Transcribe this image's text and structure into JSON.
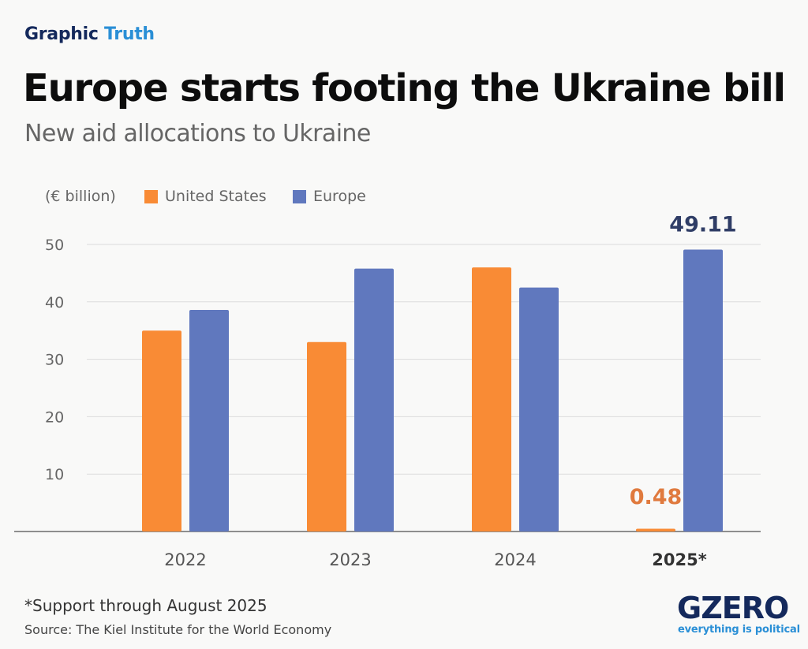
{
  "header": {
    "brand_word1": "Graphic",
    "brand_word2": "Truth"
  },
  "title": "Europe starts footing the Ukraine bill",
  "subtitle": "New aid allocations to Ukraine",
  "footnote": "*Support through August 2025",
  "source": "Source: The Kiel Institute for the World Economy",
  "logo": {
    "name": "GZERO",
    "tagline": "everything is political"
  },
  "colors": {
    "us": "#f98b35",
    "europe": "#6078be",
    "grid": "#dcdcdc",
    "axis": "#6a6a6a"
  },
  "chart_data": {
    "type": "bar",
    "unit_label": "(€ billion)",
    "categories": [
      "2022",
      "2023",
      "2024",
      "2025*"
    ],
    "series": [
      {
        "name": "United States",
        "values": [
          35,
          33,
          46,
          0.48
        ]
      },
      {
        "name": "Europe",
        "values": [
          38.6,
          45.8,
          42.5,
          49.11
        ]
      }
    ],
    "data_labels": [
      {
        "series": "United States",
        "category": "2025*",
        "text": "0.48"
      },
      {
        "series": "Europe",
        "category": "2025*",
        "text": "49.11"
      }
    ],
    "yticks": [
      10,
      20,
      30,
      40,
      50
    ],
    "ylim": [
      0,
      50
    ],
    "grid": true,
    "legend_position": "top-left"
  }
}
